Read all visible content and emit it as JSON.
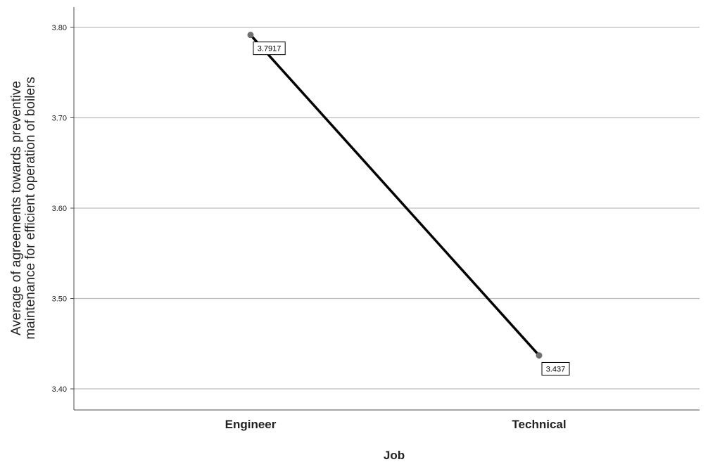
{
  "chart_data": {
    "type": "line",
    "xlabel": "Job",
    "ylabel_lines": [
      "Average of agreements towards preventive",
      "maintenance for efficient operation of boilers"
    ],
    "categories": [
      "Engineer",
      "Technical"
    ],
    "series": [
      {
        "values": [
          3.7917,
          3.437
        ],
        "data_labels": [
          "3.7917",
          "3.437"
        ]
      }
    ],
    "ylim": [
      3.38,
      3.82
    ],
    "yticks": [
      3.4,
      3.5,
      3.6,
      3.7,
      3.8
    ],
    "ytick_labels": [
      "3.40",
      "3.50",
      "3.60",
      "3.70",
      "3.80"
    ],
    "grid": true,
    "colors": {
      "line": "#000000",
      "marker": "#707070",
      "grid": "#bdbdbd",
      "axis": "#4d4d4d"
    }
  }
}
